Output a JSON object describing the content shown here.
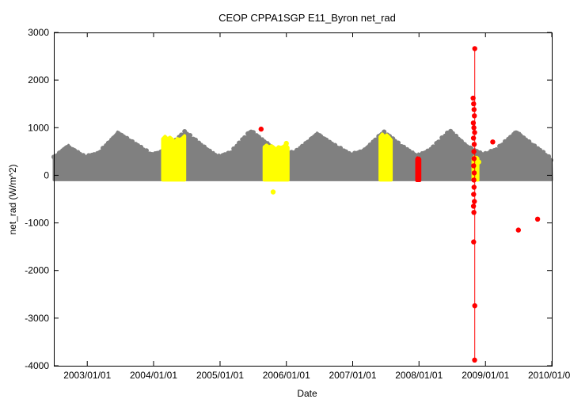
{
  "chart_data": {
    "type": "scatter",
    "title": "CEOP CPPA1SGP E11_Byron  net_rad",
    "xlabel": "Date",
    "ylabel": "net_rad (W/m^2)",
    "ylim": [
      -4000,
      3000
    ],
    "xlim": [
      "2002-07-01",
      "2010-01-01"
    ],
    "x_ticks": [
      "2003/01/01",
      "2004/01/01",
      "2005/01/01",
      "2006/01/01",
      "2007/01/01",
      "2008/01/01",
      "2009/01/01",
      "2010/01/01"
    ],
    "y_ticks": [
      -4000,
      -3000,
      -2000,
      -1000,
      0,
      1000,
      2000,
      3000
    ],
    "grid": false,
    "legend": "none",
    "colors": {
      "base": "#808080",
      "flag_yellow": "#ffff00",
      "flag_red": "#ff0000",
      "axis": "#000000"
    },
    "series": [
      {
        "color": "#808080",
        "description_type": "seasonal_band",
        "x_range": [
          "2002-07-01",
          "2010-01-01"
        ],
        "lower": -100,
        "envelope": [
          [
            "2002-07-01",
            350
          ],
          [
            "2002-09-15",
            600
          ],
          [
            "2002-12-20",
            350
          ],
          [
            "2003-03-01",
            420
          ],
          [
            "2003-06-20",
            880
          ],
          [
            "2003-10-01",
            600
          ],
          [
            "2003-12-21",
            400
          ],
          [
            "2004-03-01",
            500
          ],
          [
            "2004-06-20",
            880
          ],
          [
            "2004-09-20",
            600
          ],
          [
            "2004-12-21",
            380
          ],
          [
            "2005-03-01",
            450
          ],
          [
            "2005-06-20",
            900
          ],
          [
            "2005-09-20",
            650
          ],
          [
            "2005-12-21",
            380
          ],
          [
            "2006-03-01",
            480
          ],
          [
            "2006-06-20",
            860
          ],
          [
            "2006-09-20",
            600
          ],
          [
            "2006-12-21",
            400
          ],
          [
            "2007-03-01",
            500
          ],
          [
            "2007-06-20",
            880
          ],
          [
            "2007-09-20",
            600
          ],
          [
            "2007-12-21",
            400
          ],
          [
            "2008-03-01",
            500
          ],
          [
            "2008-06-20",
            900
          ],
          [
            "2008-09-20",
            600
          ],
          [
            "2008-12-21",
            400
          ],
          [
            "2009-03-01",
            500
          ],
          [
            "2009-06-20",
            900
          ],
          [
            "2009-09-20",
            600
          ],
          [
            "2010-01-01",
            300
          ]
        ]
      },
      {
        "color": "#ffff00",
        "description_type": "flagged_blocks",
        "blocks": [
          {
            "start": "2004-02-20",
            "end": "2004-06-20",
            "top": 850,
            "bottom": -100
          },
          {
            "start": "2005-09-01",
            "end": "2006-01-10",
            "top": 660,
            "bottom": -100
          },
          {
            "start": "2007-06-01",
            "end": "2007-08-01",
            "top": 900,
            "bottom": -100
          },
          {
            "start": "2008-10-25",
            "end": "2008-11-20",
            "top": 400,
            "bottom": -100
          }
        ],
        "points": [
          {
            "x": "2005-10-20",
            "y": -350
          },
          {
            "x": "2006-01-01",
            "y": 670
          },
          {
            "x": "2008-11-25",
            "y": 280
          }
        ]
      },
      {
        "color": "#ff0000",
        "description_type": "flagged_blocks",
        "blocks": [
          {
            "start": "2007-12-20",
            "end": "2008-01-05",
            "top": 380,
            "bottom": -110
          }
        ],
        "points": [
          {
            "x": "2005-08-15",
            "y": 970
          },
          {
            "x": "2008-10-25",
            "y": 1620
          },
          {
            "x": "2008-10-28",
            "y": 1500
          },
          {
            "x": "2008-10-30",
            "y": 1380
          },
          {
            "x": "2008-11-01",
            "y": 1250
          },
          {
            "x": "2008-10-26",
            "y": 1100
          },
          {
            "x": "2008-10-29",
            "y": 1000
          },
          {
            "x": "2008-11-02",
            "y": 900
          },
          {
            "x": "2008-10-27",
            "y": 780
          },
          {
            "x": "2008-10-31",
            "y": 650
          },
          {
            "x": "2008-10-29",
            "y": 500
          },
          {
            "x": "2008-10-30",
            "y": 350
          },
          {
            "x": "2008-10-28",
            "y": 200
          },
          {
            "x": "2008-10-31",
            "y": 50
          },
          {
            "x": "2008-10-29",
            "y": -100
          },
          {
            "x": "2008-10-30",
            "y": -250
          },
          {
            "x": "2008-10-28",
            "y": -400
          },
          {
            "x": "2008-11-01",
            "y": -550
          },
          {
            "x": "2008-10-27",
            "y": -650
          },
          {
            "x": "2008-10-29",
            "y": -780
          },
          {
            "x": "2008-10-28",
            "y": -1400
          },
          {
            "x": "2008-11-03",
            "y": 2660
          },
          {
            "x": "2008-11-03",
            "y": -2740
          },
          {
            "x": "2008-11-02",
            "y": -3880
          },
          {
            "x": "2009-02-10",
            "y": 700
          },
          {
            "x": "2009-07-01",
            "y": -1150
          },
          {
            "x": "2009-10-15",
            "y": -920
          }
        ],
        "line": {
          "x": "2008-11-03",
          "y_from": -3880,
          "y_to": 2660
        }
      }
    ]
  }
}
